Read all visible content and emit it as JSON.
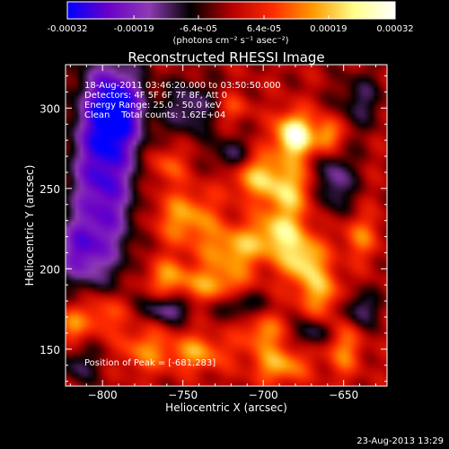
{
  "chart_data": {
    "type": "heatmap",
    "title": "Reconstructed RHESSI Image",
    "colorbar": {
      "ticks": [
        "-0.00032",
        "-0.00019",
        "-6.4e-05",
        "6.4e-05",
        "0.00019",
        "0.00032"
      ],
      "range": [
        -0.00032,
        0.00032
      ],
      "unit_label": "(photons cm⁻² s⁻¹ asec⁻²)",
      "colors": [
        "#0000ff",
        "#6a00c8",
        "#8e3ab4",
        "#000000",
        "#b40000",
        "#ff2a00",
        "#ff9a00",
        "#ffff8a",
        "#ffffff"
      ]
    },
    "x_axis": {
      "label": "Heliocentric X (arcsec)",
      "range": [
        -823,
        -623
      ],
      "ticks": [
        -800,
        -750,
        -700,
        -650
      ],
      "tick_labels": [
        "−800",
        "−750",
        "−700",
        "−650"
      ]
    },
    "y_axis": {
      "label": "Heliocentric Y (arcsec)",
      "range": [
        127,
        327
      ],
      "ticks": [
        150,
        200,
        250,
        300
      ],
      "tick_labels": [
        "150",
        "200",
        "250",
        "300"
      ]
    },
    "annotations": [
      "18-Aug-2011 03:46:20.000 to 03:50:50.000",
      "Detectors: 4F 5F 6F 7F 8F, Att 0",
      "Energy Range: 25.0 - 50.0 keV",
      "Clean    Total counts: 1.62E+04"
    ],
    "peak_label": "Position of Peak = [-681,283]",
    "peak": [
      -681,
      283
    ],
    "footer_timestamp": "23-Aug-2013 13:29",
    "blobs": [
      {
        "x": -681,
        "y": 283,
        "sx": 8,
        "sy": 10,
        "a": 1.0
      },
      {
        "x": -660,
        "y": 283,
        "sx": 6,
        "sy": 8,
        "a": 0.62
      },
      {
        "x": -705,
        "y": 258,
        "sx": 12,
        "sy": 10,
        "a": 0.55
      },
      {
        "x": -685,
        "y": 248,
        "sx": 10,
        "sy": 12,
        "a": 0.58
      },
      {
        "x": -748,
        "y": 232,
        "sx": 14,
        "sy": 12,
        "a": 0.52
      },
      {
        "x": -690,
        "y": 222,
        "sx": 12,
        "sy": 10,
        "a": 0.6
      },
      {
        "x": -718,
        "y": 212,
        "sx": 14,
        "sy": 10,
        "a": 0.55
      },
      {
        "x": -675,
        "y": 205,
        "sx": 10,
        "sy": 10,
        "a": 0.66
      },
      {
        "x": -730,
        "y": 190,
        "sx": 14,
        "sy": 8,
        "a": 0.5
      },
      {
        "x": -760,
        "y": 195,
        "sx": 10,
        "sy": 8,
        "a": 0.45
      },
      {
        "x": -665,
        "y": 185,
        "sx": 10,
        "sy": 10,
        "a": 0.5
      },
      {
        "x": -800,
        "y": 172,
        "sx": 10,
        "sy": 10,
        "a": 0.48
      },
      {
        "x": -775,
        "y": 150,
        "sx": 10,
        "sy": 10,
        "a": 0.42
      },
      {
        "x": -742,
        "y": 148,
        "sx": 14,
        "sy": 8,
        "a": 0.5
      },
      {
        "x": -700,
        "y": 160,
        "sx": 10,
        "sy": 8,
        "a": 0.45
      },
      {
        "x": -690,
        "y": 140,
        "sx": 12,
        "sy": 8,
        "a": 0.55
      },
      {
        "x": -650,
        "y": 150,
        "sx": 8,
        "sy": 12,
        "a": 0.42
      },
      {
        "x": -640,
        "y": 220,
        "sx": 8,
        "sy": 10,
        "a": 0.4
      },
      {
        "x": -820,
        "y": 165,
        "sx": 6,
        "sy": 8,
        "a": 0.45
      },
      {
        "x": -760,
        "y": 265,
        "sx": 8,
        "sy": 8,
        "a": 0.35
      },
      {
        "x": -720,
        "y": 300,
        "sx": 8,
        "sy": 6,
        "a": 0.3
      },
      {
        "x": -800,
        "y": 260,
        "sx": 14,
        "sy": 45,
        "a": -0.85
      },
      {
        "x": -790,
        "y": 300,
        "sx": 12,
        "sy": 18,
        "a": -0.7
      },
      {
        "x": -815,
        "y": 210,
        "sx": 10,
        "sy": 14,
        "a": -0.5
      },
      {
        "x": -745,
        "y": 300,
        "sx": 12,
        "sy": 12,
        "a": -0.45
      },
      {
        "x": -720,
        "y": 270,
        "sx": 8,
        "sy": 8,
        "a": -0.45
      },
      {
        "x": -655,
        "y": 255,
        "sx": 8,
        "sy": 14,
        "a": -0.5
      },
      {
        "x": -640,
        "y": 175,
        "sx": 8,
        "sy": 8,
        "a": -0.45
      },
      {
        "x": -760,
        "y": 175,
        "sx": 10,
        "sy": 6,
        "a": -0.5
      },
      {
        "x": -715,
        "y": 178,
        "sx": 10,
        "sy": 6,
        "a": -0.4
      },
      {
        "x": -670,
        "y": 160,
        "sx": 8,
        "sy": 6,
        "a": -0.4
      },
      {
        "x": -815,
        "y": 140,
        "sx": 8,
        "sy": 8,
        "a": -0.35
      },
      {
        "x": -640,
        "y": 305,
        "sx": 10,
        "sy": 12,
        "a": -0.35
      }
    ]
  }
}
